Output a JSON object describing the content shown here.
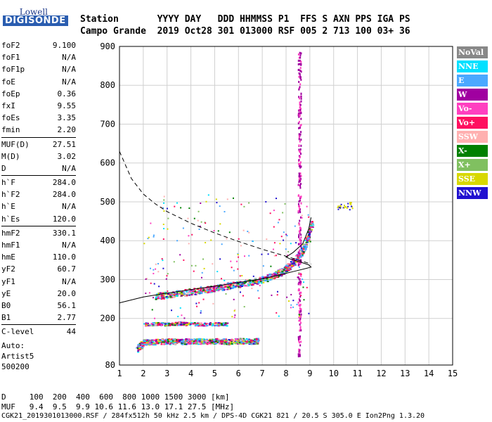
{
  "logo": {
    "line1": "Lowell",
    "line2": "DIGISONDE"
  },
  "header": {
    "line1": "Station       YYYY DAY   DDD HHMMSS P1  FFS S AXN PPS IGA PS",
    "line2": "Campo Grande  2019 Oct28 301 013000 RSF 005 2 713 100 03+ 36"
  },
  "params": {
    "group1": [
      {
        "name": "foF2",
        "value": "9.100"
      },
      {
        "name": "foF1",
        "value": "N/A"
      },
      {
        "name": "foF1p",
        "value": "N/A"
      },
      {
        "name": "foE",
        "value": "N/A"
      },
      {
        "name": "foEp",
        "value": "0.36"
      },
      {
        "name": "fxI",
        "value": "9.55"
      },
      {
        "name": "foEs",
        "value": "3.35"
      },
      {
        "name": "fmin",
        "value": "2.20"
      }
    ],
    "group2": [
      {
        "name": "MUF(D)",
        "value": "27.51"
      },
      {
        "name": "M(D)",
        "value": "3.02"
      },
      {
        "name": "D",
        "value": "N/A"
      }
    ],
    "group3": [
      {
        "name": "h`F",
        "value": "284.0"
      },
      {
        "name": "h`F2",
        "value": "284.0"
      },
      {
        "name": "h`E",
        "value": "N/A"
      },
      {
        "name": "h`Es",
        "value": "120.0"
      }
    ],
    "group4": [
      {
        "name": "hmF2",
        "value": "330.1"
      },
      {
        "name": "hmF1",
        "value": "N/A"
      },
      {
        "name": "hmE",
        "value": "110.0"
      },
      {
        "name": "yF2",
        "value": "60.7"
      },
      {
        "name": "yF1",
        "value": "N/A"
      },
      {
        "name": "yE",
        "value": "20.0"
      },
      {
        "name": "B0",
        "value": "56.1"
      },
      {
        "name": "B1",
        "value": "2.77"
      }
    ],
    "group5": [
      {
        "name": "C-level",
        "value": "44"
      }
    ]
  },
  "autoscaling": {
    "line1": "Auto:",
    "line2": "Artist5",
    "line3": "500200"
  },
  "legend": [
    {
      "label": "NoVal",
      "color": "#888888"
    },
    {
      "label": "NNE",
      "color": "#00e0ff"
    },
    {
      "label": "E",
      "color": "#4aa8ff"
    },
    {
      "label": "W",
      "color": "#a000a0"
    },
    {
      "label": "Vo-",
      "color": "#ff40c0"
    },
    {
      "label": "Vo+",
      "color": "#ff1060"
    },
    {
      "label": "SSW",
      "color": "#ffb0b0"
    },
    {
      "label": "X-",
      "color": "#008000"
    },
    {
      "label": "X+",
      "color": "#80c060"
    },
    {
      "label": "SSE",
      "color": "#d8d800"
    },
    {
      "label": "NNW",
      "color": "#2010d0"
    }
  ],
  "footer": {
    "line1": "D     100  200  400  600  800 1000 1500 3000 [km]",
    "line2": "MUF   9.4  9.5  9.9 10.6 11.6 13.0 17.1 27.5 [MHz]",
    "line3": "CGK21_2019301013000.RSF / 284fx512h 50 kHz 2.5 km / DPS-4D CGK21 821 / 20.5 S 305.0 E Ion2Png 1.3.20"
  },
  "chart_data": {
    "type": "scatter",
    "xlim": [
      1,
      15
    ],
    "ylim": [
      80,
      900
    ],
    "x_ticks": [
      1,
      2,
      3,
      4,
      5,
      6,
      7,
      8,
      9,
      10,
      11,
      12,
      13,
      14,
      15
    ],
    "y_ticks": [
      80,
      200,
      300,
      400,
      500,
      600,
      700,
      800,
      900
    ],
    "grid": true,
    "traces": [
      {
        "name": "F2 trace",
        "points": [
          [
            2.5,
            258
          ],
          [
            3,
            262
          ],
          [
            3.5,
            266
          ],
          [
            4,
            270
          ],
          [
            4.5,
            274
          ],
          [
            5,
            279
          ],
          [
            5.5,
            284
          ],
          [
            6,
            289
          ],
          [
            6.5,
            295
          ],
          [
            7,
            302
          ],
          [
            7.5,
            312
          ],
          [
            7.8,
            322
          ],
          [
            8.1,
            335
          ],
          [
            8.4,
            352
          ],
          [
            8.7,
            380
          ],
          [
            8.9,
            410
          ],
          [
            9.05,
            445
          ]
        ]
      },
      {
        "name": "Es trace",
        "points": [
          [
            1.7,
            120
          ],
          [
            2,
            140
          ],
          [
            2.5,
            141
          ],
          [
            3,
            142
          ],
          [
            3.5,
            141
          ],
          [
            4,
            143
          ],
          [
            4.5,
            142
          ],
          [
            5,
            143
          ],
          [
            5.5,
            141
          ],
          [
            6,
            143
          ],
          [
            6.5,
            142
          ],
          [
            6.8,
            143
          ]
        ]
      },
      {
        "name": "Es second hop",
        "points": [
          [
            2,
            186
          ],
          [
            2.5,
            187
          ],
          [
            3,
            186
          ],
          [
            3.5,
            188
          ],
          [
            4,
            187
          ],
          [
            4.5,
            186
          ],
          [
            5,
            187
          ],
          [
            5.5,
            186
          ]
        ]
      },
      {
        "name": "spread F column",
        "points": [
          [
            8.55,
            100
          ],
          [
            8.55,
            200
          ],
          [
            8.6,
            300
          ],
          [
            8.6,
            400
          ],
          [
            8.62,
            500
          ],
          [
            8.6,
            600
          ],
          [
            8.62,
            700
          ],
          [
            8.6,
            800
          ],
          [
            8.6,
            890
          ]
        ]
      }
    ],
    "profile_solid": [
      [
        1,
        240
      ],
      [
        2,
        255
      ],
      [
        3,
        265
      ],
      [
        4,
        274
      ],
      [
        5,
        283
      ],
      [
        6,
        292
      ],
      [
        7,
        302
      ],
      [
        7.8,
        313
      ],
      [
        8.4,
        322
      ],
      [
        8.8,
        328
      ],
      [
        9.05,
        332
      ],
      [
        8.95,
        338
      ],
      [
        8.6,
        345
      ],
      [
        8.2,
        352
      ],
      [
        8.0,
        358
      ],
      [
        8.3,
        370
      ],
      [
        8.7,
        392
      ],
      [
        8.95,
        430
      ],
      [
        9.05,
        460
      ]
    ],
    "profile_dashed": [
      [
        1,
        630
      ],
      [
        1.5,
        560
      ],
      [
        2,
        520
      ],
      [
        2.5,
        495
      ],
      [
        3,
        475
      ],
      [
        4,
        445
      ],
      [
        5,
        420
      ],
      [
        6,
        398
      ],
      [
        7,
        378
      ],
      [
        8,
        360
      ],
      [
        9.05,
        340
      ]
    ]
  }
}
